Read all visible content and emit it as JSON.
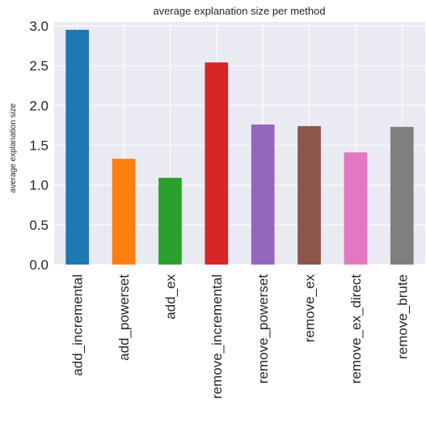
{
  "chart_data": {
    "type": "bar",
    "title": "average explanation size per method",
    "xlabel": "",
    "ylabel": "average explanation size",
    "categories": [
      "add_incremental",
      "add_powerset",
      "add_ex",
      "remove_incremental",
      "remove_powerset",
      "remove_ex",
      "remove_ex_direct",
      "remove_brute"
    ],
    "values": [
      2.95,
      1.33,
      1.09,
      2.54,
      1.76,
      1.74,
      1.41,
      1.73
    ],
    "colors": [
      "#1f77b4",
      "#ff7f0e",
      "#2ca02c",
      "#d62728",
      "#9467bd",
      "#8c564b",
      "#e377c2",
      "#7f7f7f"
    ],
    "ylim": [
      0,
      3.05
    ],
    "yticks": [
      "0.0",
      "0.5",
      "1.0",
      "1.5",
      "2.0",
      "2.5",
      "3.0"
    ],
    "grid": true,
    "background": "#eaeaf2"
  }
}
